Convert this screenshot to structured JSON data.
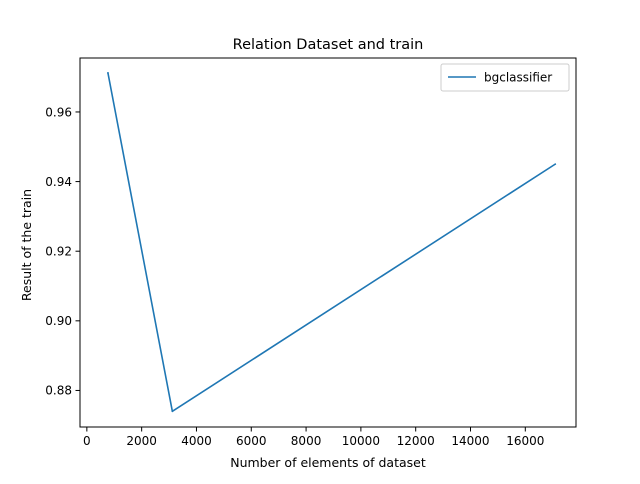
{
  "chart_data": {
    "type": "line",
    "title": "Relation Dataset and train",
    "xlabel": "Number of elements of dataset",
    "ylabel": "Result of the train",
    "xlim": [
      -250,
      17850
    ],
    "ylim": [
      0.8695,
      0.9755
    ],
    "xticks": [
      0,
      2000,
      4000,
      6000,
      8000,
      10000,
      12000,
      14000,
      16000
    ],
    "yticks": [
      0.88,
      0.9,
      0.92,
      0.94,
      0.96
    ],
    "xtick_labels": [
      "0",
      "2000",
      "4000",
      "6000",
      "8000",
      "10000",
      "12000",
      "14000",
      "16000"
    ],
    "ytick_labels": [
      "0.88",
      "0.90",
      "0.92",
      "0.94",
      "0.96"
    ],
    "legend_position": "top-right",
    "grid": false,
    "series": [
      {
        "name": "bgclassifier",
        "color": "#1f77b4",
        "x": [
          770,
          3120,
          17090
        ],
        "y": [
          0.9712,
          0.874,
          0.945
        ]
      }
    ]
  }
}
